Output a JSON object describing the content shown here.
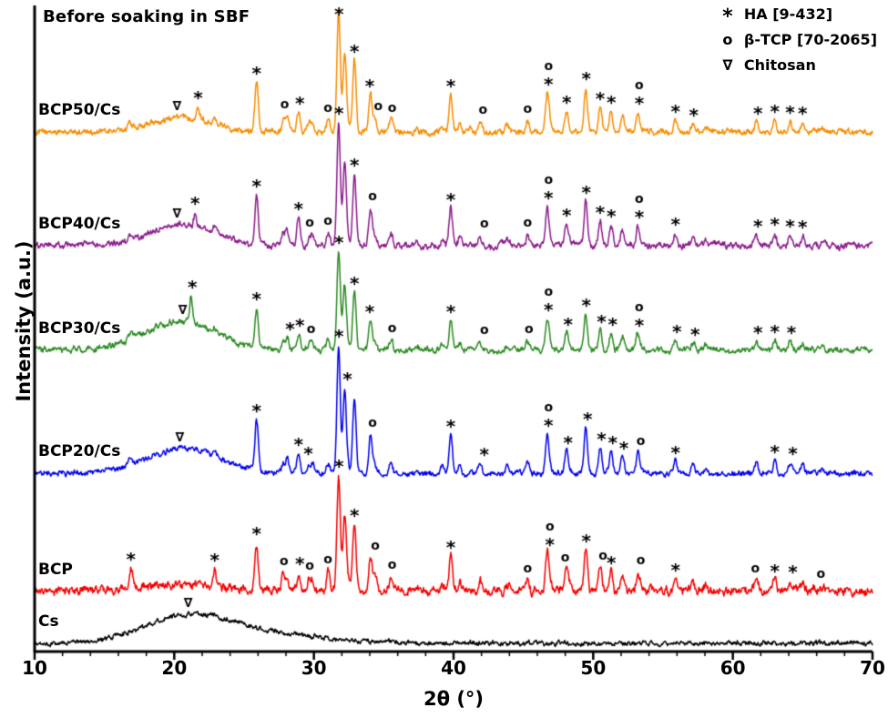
{
  "annotation": "Before soaking in SBF",
  "legend": [
    {
      "symbol": "*",
      "label": "HA [9-432]"
    },
    {
      "symbol": "o",
      "label": "β-TCP [70-2065]"
    },
    {
      "symbol": "∇",
      "label": "Chitosan"
    }
  ],
  "axes": {
    "xlabel": "2θ (°)",
    "ylabel": "Intensity (a.u.)",
    "x_ticks": [
      "10",
      "20",
      "30",
      "40",
      "50",
      "60",
      "70"
    ],
    "x_range": [
      10,
      70
    ],
    "x_minor_step": 2
  },
  "chart_data": {
    "type": "line",
    "x_range": [
      10,
      70
    ],
    "xlabel": "2θ (°)",
    "ylabel": "Intensity (a.u.)",
    "note": "XRD patterns, stacked with vertical offsets; peaks listed as [two_theta_deg, relative_intensity_0_100]",
    "ha_peaks": [
      [
        16.8,
        5
      ],
      [
        22.9,
        6
      ],
      [
        25.9,
        38
      ],
      [
        28.1,
        12
      ],
      [
        28.9,
        16
      ],
      [
        29.9,
        8
      ],
      [
        31.77,
        100
      ],
      [
        32.2,
        66
      ],
      [
        32.9,
        58
      ],
      [
        34.05,
        30
      ],
      [
        35.5,
        6
      ],
      [
        39.2,
        6
      ],
      [
        39.8,
        30
      ],
      [
        40.45,
        7
      ],
      [
        41.9,
        8
      ],
      [
        43.8,
        5
      ],
      [
        45.3,
        9
      ],
      [
        46.7,
        30
      ],
      [
        48.1,
        16
      ],
      [
        49.47,
        36
      ],
      [
        50.5,
        20
      ],
      [
        51.28,
        17
      ],
      [
        52.1,
        12
      ],
      [
        53.2,
        16
      ],
      [
        55.9,
        9
      ],
      [
        57.15,
        7
      ],
      [
        58.1,
        4
      ],
      [
        61.7,
        8
      ],
      [
        63.0,
        10
      ],
      [
        64.1,
        9
      ],
      [
        65.0,
        8
      ],
      [
        66.4,
        4
      ]
    ],
    "tcp_peaks": [
      [
        13.65,
        4
      ],
      [
        17.0,
        5
      ],
      [
        21.9,
        4
      ],
      [
        25.8,
        8
      ],
      [
        27.8,
        25
      ],
      [
        29.65,
        18
      ],
      [
        31.03,
        30
      ],
      [
        32.45,
        16
      ],
      [
        34.37,
        28
      ],
      [
        35.58,
        12
      ],
      [
        37.35,
        6
      ],
      [
        41.2,
        6
      ],
      [
        44.0,
        4
      ],
      [
        46.9,
        16
      ],
      [
        47.95,
        8
      ],
      [
        48.4,
        5
      ],
      [
        52.0,
        6
      ],
      [
        53.5,
        8
      ],
      [
        55.8,
        4
      ],
      [
        58.65,
        4
      ],
      [
        61.5,
        5
      ],
      [
        65.8,
        5
      ],
      [
        66.8,
        4
      ]
    ],
    "series": [
      {
        "name": "BCP50/Cs",
        "color": "#f88c00",
        "offset": 6.27,
        "ha_scale": 1.5,
        "tcp_scale": 0.5,
        "noise": 0.035,
        "humps": [
          [
            20.6,
            2.2,
            0.18
          ]
        ],
        "extra": [
          [
            21.7,
            0.15
          ]
        ],
        "markers": [
          {
            "s": "∇",
            "x": 20.2
          },
          {
            "s": "*",
            "x": 21.7
          },
          {
            "s": "*",
            "x": 25.9
          },
          {
            "s": "o",
            "x": 27.9
          },
          {
            "s": "*",
            "x": 29.0
          },
          {
            "s": "o",
            "x": 31.0
          },
          {
            "s": "*",
            "x": 31.8
          },
          {
            "s": "*",
            "x": 32.9
          },
          {
            "s": "*",
            "x": 34.0
          },
          {
            "s": "o",
            "x": 34.6
          },
          {
            "s": "o",
            "x": 35.6
          },
          {
            "s": "*",
            "x": 39.8
          },
          {
            "s": "o",
            "x": 42.1
          },
          {
            "s": "o",
            "x": 45.3
          },
          {
            "s": "*o",
            "x": 46.8
          },
          {
            "s": "*",
            "x": 48.1
          },
          {
            "s": "*",
            "x": 49.5
          },
          {
            "s": "*",
            "x": 50.5
          },
          {
            "s": "*",
            "x": 51.3
          },
          {
            "s": "*o",
            "x": 53.3
          },
          {
            "s": "*",
            "x": 55.9
          },
          {
            "s": "*",
            "x": 57.2
          },
          {
            "s": "*",
            "x": 61.8
          },
          {
            "s": "*",
            "x": 63.0
          },
          {
            "s": "*",
            "x": 64.1
          },
          {
            "s": "*",
            "x": 65.0
          }
        ]
      },
      {
        "name": "BCP40/Cs",
        "color": "#8b1b8b",
        "offset": 4.9,
        "ha_scale": 1.5,
        "tcp_scale": 0.5,
        "noise": 0.038,
        "humps": [
          [
            20.6,
            2.3,
            0.25
          ]
        ],
        "extra": [
          [
            21.5,
            0.18
          ],
          [
            28.9,
            0.1
          ]
        ],
        "markers": [
          {
            "s": "∇",
            "x": 20.2
          },
          {
            "s": "*",
            "x": 21.5
          },
          {
            "s": "*",
            "x": 25.9
          },
          {
            "s": "*",
            "x": 28.9
          },
          {
            "s": "o",
            "x": 29.7
          },
          {
            "s": "o",
            "x": 31.0
          },
          {
            "s": "*",
            "x": 31.8
          },
          {
            "s": "*",
            "x": 32.9
          },
          {
            "s": "o",
            "x": 34.2
          },
          {
            "s": "*",
            "x": 39.8
          },
          {
            "s": "o",
            "x": 42.2
          },
          {
            "s": "o",
            "x": 45.3
          },
          {
            "s": "*o",
            "x": 46.8
          },
          {
            "s": "*",
            "x": 48.1
          },
          {
            "s": "*",
            "x": 49.5
          },
          {
            "s": "*",
            "x": 50.5
          },
          {
            "s": "*",
            "x": 51.3
          },
          {
            "s": "*o",
            "x": 53.3
          },
          {
            "s": "*",
            "x": 55.9
          },
          {
            "s": "*",
            "x": 61.8
          },
          {
            "s": "*",
            "x": 63.0
          },
          {
            "s": "*",
            "x": 64.1
          },
          {
            "s": "*",
            "x": 65.0
          }
        ]
      },
      {
        "name": "BCP30/Cs",
        "color": "#2a8a22",
        "offset": 3.64,
        "ha_scale": 1.2,
        "tcp_scale": 0.45,
        "noise": 0.035,
        "humps": [
          [
            20.4,
            2.5,
            0.35
          ]
        ],
        "extra": [
          [
            21.2,
            0.32
          ]
        ],
        "markers": [
          {
            "s": "∇",
            "x": 20.6
          },
          {
            "s": "*",
            "x": 21.3
          },
          {
            "s": "*",
            "x": 25.9
          },
          {
            "s": "*",
            "x": 28.3
          },
          {
            "s": "*",
            "x": 29.0
          },
          {
            "s": "o",
            "x": 29.8
          },
          {
            "s": "*",
            "x": 31.8
          },
          {
            "s": "*",
            "x": 32.9
          },
          {
            "s": "*",
            "x": 34.0
          },
          {
            "s": "o",
            "x": 35.6
          },
          {
            "s": "*",
            "x": 39.8
          },
          {
            "s": "o",
            "x": 42.2
          },
          {
            "s": "o",
            "x": 45.4
          },
          {
            "s": "*o",
            "x": 46.8
          },
          {
            "s": "*",
            "x": 48.2
          },
          {
            "s": "*",
            "x": 49.5
          },
          {
            "s": "*",
            "x": 50.6
          },
          {
            "s": "*",
            "x": 51.4
          },
          {
            "s": "*o",
            "x": 53.3
          },
          {
            "s": "*",
            "x": 56.0
          },
          {
            "s": "*",
            "x": 57.3
          },
          {
            "s": "*",
            "x": 61.8
          },
          {
            "s": "*",
            "x": 63.0
          },
          {
            "s": "*",
            "x": 64.2
          }
        ]
      },
      {
        "name": "BCP20/Cs",
        "color": "#0000ee",
        "offset": 2.15,
        "ha_scale": 1.55,
        "tcp_scale": 0.4,
        "noise": 0.032,
        "humps": [
          [
            20.6,
            2.6,
            0.3
          ]
        ],
        "extra": [],
        "markers": [
          {
            "s": "∇",
            "x": 20.4
          },
          {
            "s": "*",
            "x": 25.9
          },
          {
            "s": "*",
            "x": 28.9
          },
          {
            "s": "*",
            "x": 29.6
          },
          {
            "s": "*",
            "x": 31.8
          },
          {
            "s": "*",
            "x": 32.4
          },
          {
            "s": "o",
            "x": 34.2
          },
          {
            "s": "*",
            "x": 39.8
          },
          {
            "s": "*",
            "x": 42.2
          },
          {
            "s": "*o",
            "x": 46.8
          },
          {
            "s": "*",
            "x": 48.2
          },
          {
            "s": "*",
            "x": 49.6
          },
          {
            "s": "*",
            "x": 50.6
          },
          {
            "s": "*",
            "x": 51.4
          },
          {
            "s": "*",
            "x": 52.2
          },
          {
            "s": "o",
            "x": 53.4
          },
          {
            "s": "*",
            "x": 55.9
          },
          {
            "s": "*",
            "x": 63.0
          },
          {
            "s": "*",
            "x": 64.3
          }
        ]
      },
      {
        "name": "BCP",
        "color": "#f40000",
        "offset": 0.73,
        "ha_scale": 1.4,
        "tcp_scale": 0.8,
        "noise": 0.05,
        "humps": [
          [
            20.5,
            3.0,
            0.08
          ]
        ],
        "extra": [
          [
            16.9,
            0.16
          ],
          [
            22.9,
            0.13
          ]
        ],
        "markers": [
          {
            "s": "*",
            "x": 16.9
          },
          {
            "s": "*",
            "x": 22.9
          },
          {
            "s": "*",
            "x": 25.9
          },
          {
            "s": "o",
            "x": 27.85
          },
          {
            "s": "*",
            "x": 29.0
          },
          {
            "s": "o",
            "x": 29.7
          },
          {
            "s": "o",
            "x": 31.0
          },
          {
            "s": "*",
            "x": 31.8
          },
          {
            "s": "*",
            "x": 32.9
          },
          {
            "s": "o",
            "x": 34.4
          },
          {
            "s": "o",
            "x": 35.6
          },
          {
            "s": "*",
            "x": 39.8
          },
          {
            "s": "o",
            "x": 45.3
          },
          {
            "s": "*o",
            "x": 46.9
          },
          {
            "s": "o",
            "x": 48.0
          },
          {
            "s": "*",
            "x": 49.5
          },
          {
            "s": "o",
            "x": 50.7
          },
          {
            "s": "*",
            "x": 51.3
          },
          {
            "s": "o",
            "x": 53.4
          },
          {
            "s": "*",
            "x": 55.9
          },
          {
            "s": "o",
            "x": 61.6
          },
          {
            "s": "*",
            "x": 63.0
          },
          {
            "s": "*",
            "x": 64.3
          },
          {
            "s": "o",
            "x": 66.3
          }
        ]
      },
      {
        "name": "Cs",
        "color": "#000000",
        "offset": 0.1,
        "ha_scale": 0,
        "tcp_scale": 0,
        "noise": 0.028,
        "humps": [
          [
            21.0,
            3.2,
            0.32
          ],
          [
            27.0,
            4.0,
            0.1
          ]
        ],
        "extra": [],
        "markers": [
          {
            "s": "∇",
            "x": 21.0
          }
        ]
      }
    ]
  }
}
